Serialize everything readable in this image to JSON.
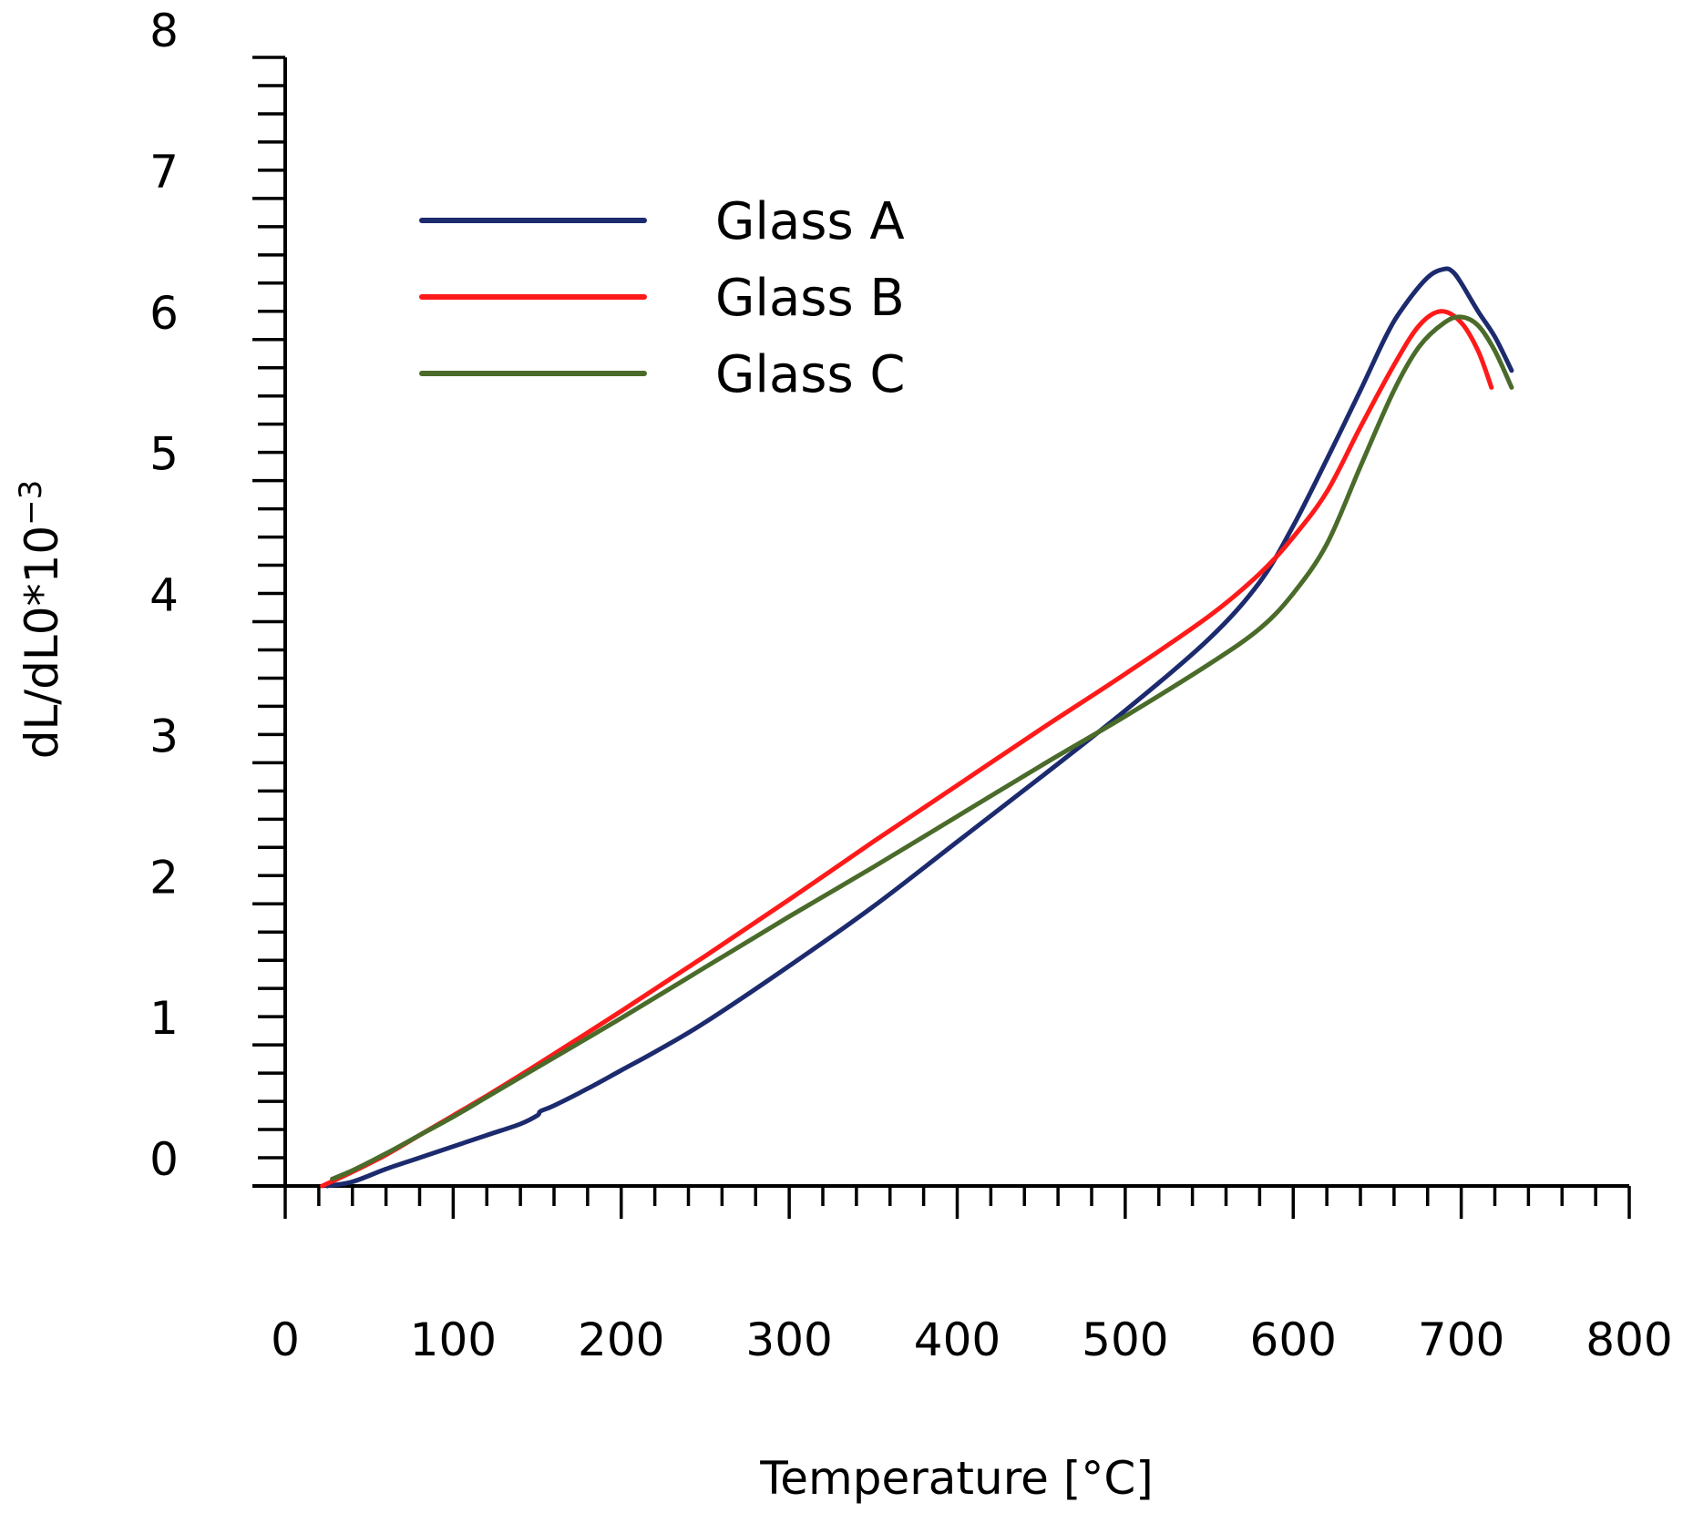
{
  "chart_data": {
    "type": "line",
    "title": "",
    "xlabel": "Temperature [°C]",
    "ylabel": "dL/dL0*10",
    "ylabel_exponent": "−3",
    "xlim": [
      0,
      800
    ],
    "ylim": [
      0,
      8
    ],
    "x_ticks": [
      0,
      100,
      200,
      300,
      400,
      500,
      600,
      700,
      800
    ],
    "y_ticks": [
      0,
      1,
      2,
      3,
      4,
      5,
      6,
      7,
      8
    ],
    "x_minor_step": 20,
    "y_minor_step": 0.2,
    "grid": false,
    "legend_position": "top-left",
    "series": [
      {
        "name": "Glass A",
        "color": "#1c2a6e",
        "points": [
          [
            25,
            0.0
          ],
          [
            40,
            0.03
          ],
          [
            60,
            0.12
          ],
          [
            80,
            0.2
          ],
          [
            100,
            0.28
          ],
          [
            120,
            0.36
          ],
          [
            140,
            0.44
          ],
          [
            150,
            0.5
          ],
          [
            152,
            0.53
          ],
          [
            160,
            0.57
          ],
          [
            180,
            0.69
          ],
          [
            200,
            0.82
          ],
          [
            220,
            0.95
          ],
          [
            250,
            1.16
          ],
          [
            300,
            1.56
          ],
          [
            350,
            1.98
          ],
          [
            400,
            2.44
          ],
          [
            450,
            2.9
          ],
          [
            500,
            3.37
          ],
          [
            550,
            3.88
          ],
          [
            580,
            4.28
          ],
          [
            600,
            4.68
          ],
          [
            620,
            5.15
          ],
          [
            640,
            5.64
          ],
          [
            655,
            6.02
          ],
          [
            665,
            6.22
          ],
          [
            680,
            6.44
          ],
          [
            690,
            6.5
          ],
          [
            695,
            6.48
          ],
          [
            700,
            6.4
          ],
          [
            710,
            6.2
          ],
          [
            720,
            6.02
          ],
          [
            730,
            5.78
          ]
        ]
      },
      {
        "name": "Glass B",
        "color": "#ff1a1a",
        "points": [
          [
            22,
            0.0
          ],
          [
            40,
            0.1
          ],
          [
            60,
            0.22
          ],
          [
            80,
            0.36
          ],
          [
            100,
            0.5
          ],
          [
            120,
            0.64
          ],
          [
            150,
            0.86
          ],
          [
            200,
            1.24
          ],
          [
            250,
            1.63
          ],
          [
            300,
            2.03
          ],
          [
            350,
            2.44
          ],
          [
            400,
            2.84
          ],
          [
            450,
            3.24
          ],
          [
            500,
            3.63
          ],
          [
            550,
            4.04
          ],
          [
            580,
            4.34
          ],
          [
            600,
            4.6
          ],
          [
            620,
            4.92
          ],
          [
            640,
            5.38
          ],
          [
            660,
            5.82
          ],
          [
            675,
            6.1
          ],
          [
            688,
            6.2
          ],
          [
            700,
            6.12
          ],
          [
            710,
            5.92
          ],
          [
            718,
            5.66
          ]
        ]
      },
      {
        "name": "Glass C",
        "color": "#4a6b2a",
        "points": [
          [
            28,
            0.05
          ],
          [
            40,
            0.11
          ],
          [
            60,
            0.23
          ],
          [
            80,
            0.36
          ],
          [
            100,
            0.49
          ],
          [
            120,
            0.63
          ],
          [
            150,
            0.84
          ],
          [
            200,
            1.19
          ],
          [
            250,
            1.55
          ],
          [
            300,
            1.91
          ],
          [
            350,
            2.26
          ],
          [
            400,
            2.62
          ],
          [
            450,
            2.98
          ],
          [
            500,
            3.33
          ],
          [
            550,
            3.7
          ],
          [
            580,
            3.95
          ],
          [
            600,
            4.2
          ],
          [
            620,
            4.55
          ],
          [
            640,
            5.1
          ],
          [
            660,
            5.64
          ],
          [
            675,
            5.95
          ],
          [
            690,
            6.12
          ],
          [
            700,
            6.16
          ],
          [
            710,
            6.1
          ],
          [
            720,
            5.92
          ],
          [
            730,
            5.66
          ]
        ]
      }
    ]
  }
}
